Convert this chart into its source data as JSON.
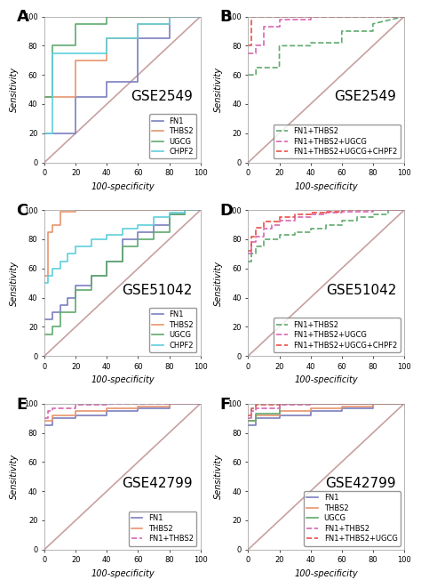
{
  "panels": [
    {
      "label": "A",
      "title": "GSE2549",
      "curves": [
        {
          "name": "FN1",
          "color": "#7b7fbf",
          "linestyle": "-",
          "x": [
            0,
            20,
            20,
            40,
            40,
            60,
            60,
            80,
            80,
            100
          ],
          "y": [
            20,
            20,
            45,
            45,
            55,
            55,
            85,
            85,
            100,
            100
          ]
        },
        {
          "name": "THBS2",
          "color": "#e8956d",
          "linestyle": "-",
          "x": [
            0,
            20,
            20,
            40,
            40,
            60,
            60,
            80,
            80,
            100
          ],
          "y": [
            45,
            45,
            70,
            70,
            85,
            85,
            95,
            95,
            100,
            100
          ]
        },
        {
          "name": "UGCG",
          "color": "#5faa6e",
          "linestyle": "-",
          "x": [
            0,
            5,
            5,
            20,
            20,
            40,
            40,
            80,
            80,
            100
          ],
          "y": [
            45,
            45,
            80,
            80,
            95,
            95,
            100,
            100,
            100,
            100
          ]
        },
        {
          "name": "CHPF2",
          "color": "#5ecfdc",
          "linestyle": "-",
          "x": [
            0,
            5,
            5,
            40,
            40,
            60,
            60,
            80,
            80,
            100
          ],
          "y": [
            20,
            20,
            75,
            75,
            85,
            85,
            95,
            95,
            100,
            100
          ]
        }
      ],
      "legend_pos": "lower right",
      "combined": false
    },
    {
      "label": "B",
      "title": "GSE2549",
      "curves": [
        {
          "name": "FN1+THBS2",
          "color": "#5faa6e",
          "linestyle": "--",
          "x": [
            0,
            5,
            5,
            20,
            20,
            40,
            40,
            60,
            60,
            80,
            80,
            100
          ],
          "y": [
            60,
            60,
            65,
            65,
            80,
            80,
            82,
            82,
            90,
            90,
            95,
            100
          ]
        },
        {
          "name": "FN1+THBS2+UGCG",
          "color": "#d966b0",
          "linestyle": "--",
          "x": [
            0,
            5,
            5,
            10,
            10,
            20,
            20,
            40,
            40,
            80,
            80,
            100
          ],
          "y": [
            75,
            75,
            80,
            80,
            93,
            93,
            98,
            98,
            100,
            100,
            100,
            100
          ]
        },
        {
          "name": "FN1+THBS2+UGCG+CHPF2",
          "color": "#e8504a",
          "linestyle": "--",
          "x": [
            0,
            2,
            2,
            10,
            10,
            40,
            40,
            80,
            80,
            100
          ],
          "y": [
            80,
            80,
            100,
            100,
            100,
            100,
            100,
            100,
            100,
            100
          ]
        }
      ],
      "legend_pos": "lower right",
      "combined": true
    },
    {
      "label": "C",
      "title": "GSE51042",
      "curves": [
        {
          "name": "FN1",
          "color": "#7b7fbf",
          "linestyle": "-",
          "x": [
            0,
            5,
            5,
            10,
            10,
            15,
            15,
            20,
            20,
            30,
            30,
            40,
            40,
            50,
            50,
            60,
            60,
            70,
            70,
            80,
            80,
            90,
            90,
            100
          ],
          "y": [
            25,
            25,
            30,
            30,
            35,
            35,
            40,
            40,
            48,
            48,
            55,
            55,
            65,
            65,
            80,
            80,
            85,
            85,
            90,
            90,
            97,
            97,
            100,
            100
          ]
        },
        {
          "name": "THBS2",
          "color": "#e8956d",
          "linestyle": "-",
          "x": [
            0,
            2,
            2,
            5,
            5,
            10,
            10,
            20,
            20,
            60,
            60,
            80,
            80,
            100
          ],
          "y": [
            55,
            55,
            85,
            85,
            90,
            90,
            99,
            99,
            100,
            100,
            100,
            100,
            100,
            100
          ]
        },
        {
          "name": "UGCG",
          "color": "#5faa6e",
          "linestyle": "-",
          "x": [
            0,
            5,
            5,
            10,
            10,
            20,
            20,
            30,
            30,
            40,
            40,
            50,
            50,
            60,
            60,
            70,
            70,
            80,
            80,
            90,
            90,
            100
          ],
          "y": [
            15,
            15,
            20,
            20,
            30,
            30,
            45,
            45,
            55,
            55,
            65,
            65,
            75,
            75,
            80,
            80,
            85,
            85,
            97,
            97,
            100,
            100
          ]
        },
        {
          "name": "CHPF2",
          "color": "#5ecfdc",
          "linestyle": "-",
          "x": [
            0,
            2,
            2,
            5,
            5,
            10,
            10,
            15,
            15,
            20,
            20,
            30,
            30,
            40,
            40,
            50,
            50,
            60,
            60,
            70,
            70,
            80,
            80,
            90,
            90,
            100
          ],
          "y": [
            50,
            50,
            55,
            55,
            60,
            60,
            65,
            65,
            70,
            70,
            75,
            75,
            80,
            80,
            83,
            83,
            87,
            87,
            90,
            90,
            95,
            95,
            98,
            98,
            100,
            100
          ]
        }
      ],
      "legend_pos": "lower right",
      "combined": false
    },
    {
      "label": "D",
      "title": "GSE51042",
      "curves": [
        {
          "name": "FN1+THBS2",
          "color": "#5faa6e",
          "linestyle": "--",
          "x": [
            0,
            2,
            2,
            5,
            5,
            10,
            10,
            20,
            20,
            30,
            30,
            40,
            40,
            50,
            50,
            60,
            60,
            70,
            70,
            80,
            80,
            90,
            90,
            100
          ],
          "y": [
            65,
            65,
            70,
            70,
            75,
            75,
            80,
            80,
            83,
            83,
            85,
            85,
            87,
            87,
            90,
            90,
            93,
            93,
            95,
            95,
            97,
            97,
            100,
            100
          ]
        },
        {
          "name": "FN1+THBS2+UGCG",
          "color": "#d966b0",
          "linestyle": "--",
          "x": [
            0,
            2,
            2,
            5,
            5,
            10,
            10,
            15,
            15,
            20,
            20,
            30,
            30,
            40,
            40,
            50,
            50,
            60,
            60,
            80,
            80,
            100
          ],
          "y": [
            70,
            70,
            78,
            78,
            82,
            82,
            87,
            87,
            90,
            90,
            93,
            93,
            95,
            95,
            97,
            97,
            98,
            98,
            99,
            99,
            100,
            100
          ]
        },
        {
          "name": "FN1+THBS2+UGCG+CHPF2",
          "color": "#e8504a",
          "linestyle": "--",
          "x": [
            0,
            2,
            2,
            5,
            5,
            10,
            10,
            20,
            20,
            30,
            30,
            40,
            40,
            50,
            50,
            60,
            60,
            80,
            80,
            100
          ],
          "y": [
            72,
            72,
            82,
            82,
            88,
            88,
            92,
            92,
            95,
            95,
            97,
            97,
            98,
            98,
            99,
            99,
            100,
            100,
            100,
            100
          ]
        }
      ],
      "legend_pos": "lower right",
      "combined": true
    },
    {
      "label": "E",
      "title": "GSE42799",
      "curves": [
        {
          "name": "FN1",
          "color": "#7b7fbf",
          "linestyle": "-",
          "x": [
            0,
            5,
            5,
            20,
            20,
            40,
            40,
            60,
            60,
            80,
            80,
            100
          ],
          "y": [
            85,
            85,
            90,
            90,
            92,
            92,
            95,
            95,
            97,
            97,
            100,
            100
          ]
        },
        {
          "name": "THBS2",
          "color": "#e8956d",
          "linestyle": "-",
          "x": [
            0,
            5,
            5,
            20,
            20,
            40,
            40,
            60,
            60,
            80,
            80,
            100
          ],
          "y": [
            88,
            88,
            92,
            92,
            95,
            95,
            97,
            97,
            98,
            98,
            100,
            100
          ]
        },
        {
          "name": "FN1+THBS2",
          "color": "#d966b0",
          "linestyle": "--",
          "x": [
            0,
            2,
            2,
            5,
            5,
            20,
            20,
            40,
            40,
            80,
            80,
            100
          ],
          "y": [
            90,
            90,
            95,
            95,
            97,
            97,
            99,
            99,
            100,
            100,
            100,
            100
          ]
        }
      ],
      "legend_pos": "lower right",
      "combined": false
    },
    {
      "label": "F",
      "title": "GSE42799",
      "curves": [
        {
          "name": "FN1",
          "color": "#7b7fbf",
          "linestyle": "-",
          "x": [
            0,
            5,
            5,
            20,
            20,
            40,
            40,
            60,
            60,
            80,
            80,
            100
          ],
          "y": [
            85,
            85,
            90,
            90,
            92,
            92,
            95,
            95,
            97,
            97,
            100,
            100
          ]
        },
        {
          "name": "THBS2",
          "color": "#e8956d",
          "linestyle": "-",
          "x": [
            0,
            5,
            5,
            20,
            20,
            40,
            40,
            60,
            60,
            80,
            80,
            100
          ],
          "y": [
            88,
            88,
            92,
            92,
            95,
            95,
            97,
            97,
            98,
            98,
            100,
            100
          ]
        },
        {
          "name": "UGCG",
          "color": "#5faa6e",
          "linestyle": "-",
          "x": [
            0,
            5,
            5,
            20,
            20,
            40,
            40,
            100
          ],
          "y": [
            88,
            88,
            93,
            93,
            100,
            100,
            100,
            100
          ]
        },
        {
          "name": "FN1+THBS2",
          "color": "#d966b0",
          "linestyle": "--",
          "x": [
            0,
            2,
            2,
            5,
            5,
            20,
            20,
            40,
            40,
            80,
            80,
            100
          ],
          "y": [
            90,
            90,
            95,
            95,
            97,
            97,
            99,
            99,
            100,
            100,
            100,
            100
          ]
        },
        {
          "name": "FN1+THBS2+UGCG",
          "color": "#e8504a",
          "linestyle": "--",
          "x": [
            0,
            2,
            2,
            5,
            5,
            20,
            20,
            40,
            40,
            100
          ],
          "y": [
            92,
            92,
            97,
            97,
            99,
            99,
            100,
            100,
            100,
            100
          ]
        }
      ],
      "legend_pos": "lower right",
      "combined": false
    }
  ],
  "diagonal_color": "#c8a0a0",
  "bg_color": "#ffffff",
  "axis_label_fontsize": 7,
  "tick_fontsize": 6,
  "legend_fontsize": 6,
  "title_fontsize": 11,
  "panel_label_fontsize": 13,
  "linewidth": 1.2
}
